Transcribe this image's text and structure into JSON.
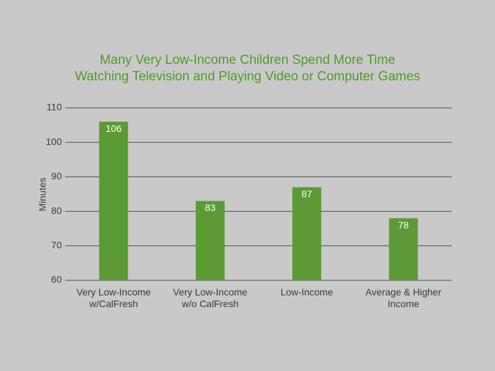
{
  "chart_data": {
    "type": "bar",
    "title": "Many Very Low-Income Children Spend More Time\nWatching Television and Playing Video or Computer Games",
    "y_label": "Minutes",
    "categories": [
      "Very Low-Income\nw/CalFresh",
      "Very Low-Income\nw/o CalFresh",
      "Low-Income",
      "Average & Higher\nIncome"
    ],
    "values": [
      106,
      83,
      87,
      78
    ],
    "color": "#5b9a34",
    "ylim": [
      60,
      110
    ],
    "yticks": [
      60,
      70,
      80,
      90,
      100,
      110
    ],
    "grid": true
  }
}
